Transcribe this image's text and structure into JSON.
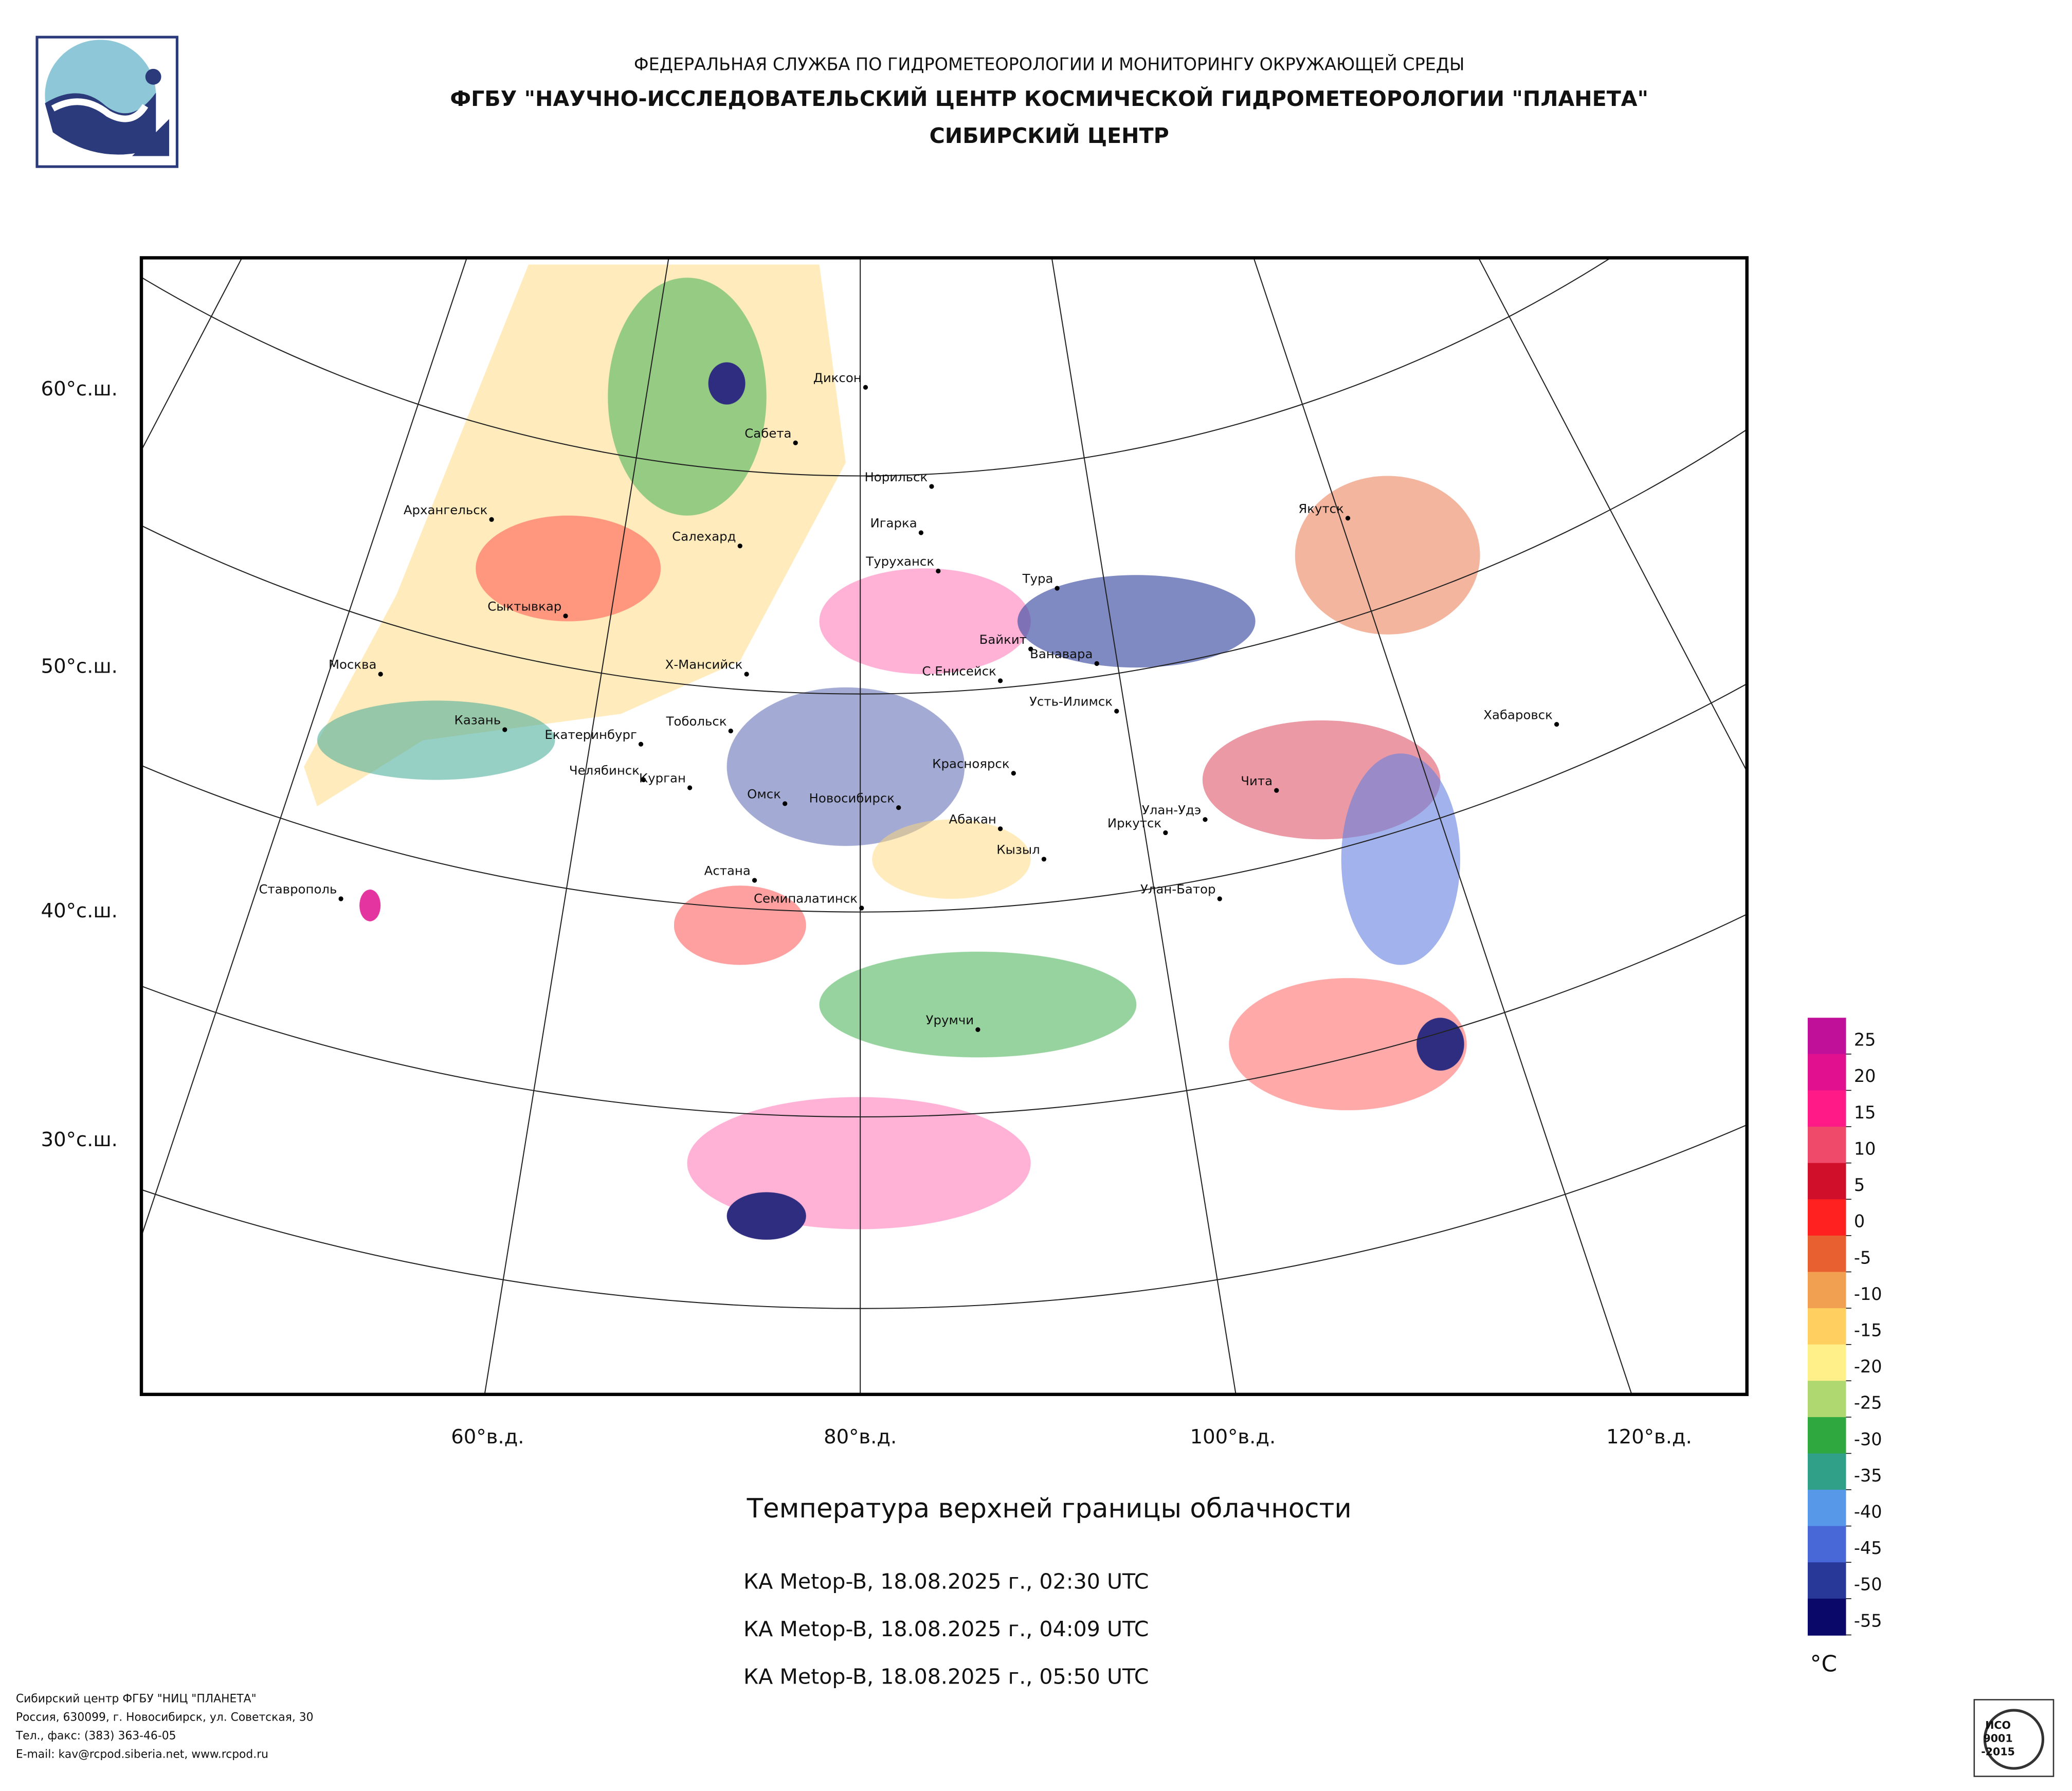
{
  "header": {
    "line1": "ФЕДЕРАЛЬНАЯ СЛУЖБА ПО ГИДРОМЕТЕОРОЛОГИИ И МОНИТОРИНГУ ОКРУЖАЮЩЕЙ СРЕДЫ",
    "line2": "ФГБУ \"НАУЧНО-ИССЛЕДОВАТЕЛЬСКИЙ ЦЕНТР КОСМИЧЕСКОЙ ГИДРОМЕТЕОРОЛОГИИ \"ПЛАНЕТА\"",
    "line3": "СИБИРСКИЙ ЦЕНТР"
  },
  "map": {
    "lat_labels": [
      "60°с.ш.",
      "50°с.ш.",
      "40°с.ш.",
      "30°с.ш."
    ],
    "lon_labels": [
      "60°в.д.",
      "80°в.д.",
      "100°в.д.",
      "120°в.д."
    ],
    "cities": [
      "Диксон",
      "Сабета",
      "Норильск",
      "Игарка",
      "Туруханск",
      "Тура",
      "Якутск",
      "Архангельск",
      "Салехард",
      "Сыктывкар",
      "Москва",
      "Х-Мансийск",
      "Байкит",
      "Ванавара",
      "С.Енисейск",
      "Усть-Илимск",
      "Хабаровск",
      "Казань",
      "Тобольск",
      "Екатеринбург",
      "Челябинск",
      "Курган",
      "Красноярск",
      "Чита",
      "Омск",
      "Новосибирск",
      "Улан-Удэ",
      "Иркутск",
      "Абакан",
      "Кызыл",
      "Астана",
      "Ставрополь",
      "Семипалатинск",
      "Улан-Батор",
      "Урумчи"
    ]
  },
  "title": "Температура верхней границы облачности",
  "passes": [
    "КА Metop-B, 18.08.2025 г., 02:30 UTC",
    "КА Metop-B, 18.08.2025 г., 04:09 UTC",
    "КА Metop-B, 18.08.2025 г., 05:50 UTC"
  ],
  "legend": {
    "lim": [
      -55,
      30
    ],
    "ticks": [
      25,
      20,
      15,
      10,
      5,
      0,
      -5,
      -10,
      -15,
      -20,
      -25,
      -30,
      -35,
      -40,
      -45,
      -50,
      -55
    ],
    "colors": [
      "#c0109a",
      "#e0108e",
      "#ff1a88",
      "#f04a6a",
      "#d0102a",
      "#ff2020",
      "#e86030",
      "#f0a050",
      "#ffd060",
      "#fff08a",
      "#b0d870",
      "#30a840",
      "#30a088",
      "#5898e8",
      "#4868d8",
      "#283898",
      "#0a0868"
    ],
    "unit": "°C"
  },
  "footer": [
    "Сибирский центр ФГБУ \"НИЦ \"ПЛАНЕТА\"",
    "Россия, 630099, г. Новосибирск, ул. Советская, 30",
    "Тел., факс: (383) 363-46-05",
    "E-mail: kav@rcpod.siberia.net, www.rcpod.ru"
  ],
  "cert": [
    "ИСО",
    "9001",
    "-2015"
  ]
}
